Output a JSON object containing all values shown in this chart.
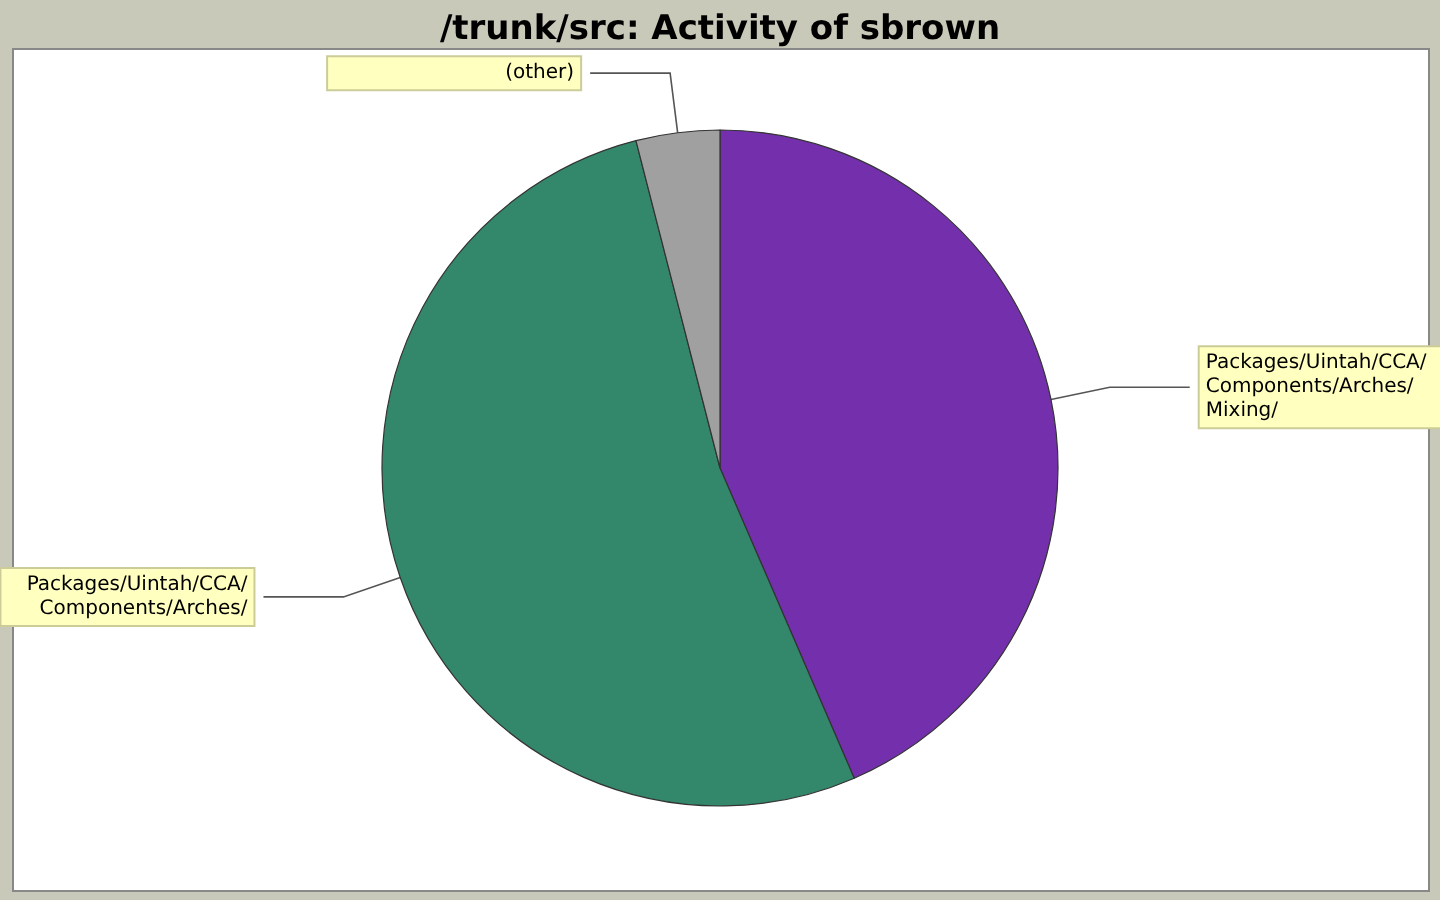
{
  "chart_data": {
    "type": "pie",
    "title": "/trunk/src: Activity of sbrown",
    "categories": [
      "Packages/Uintah/CCA/Components/Arches/Mixing/",
      "Packages/Uintah/CCA/Components/Arches/",
      "(other)"
    ],
    "values": [
      43.5,
      52.5,
      4.0
    ],
    "colors": [
      "#7430ac",
      "#33886c",
      "#a0a0a0"
    ]
  }
}
